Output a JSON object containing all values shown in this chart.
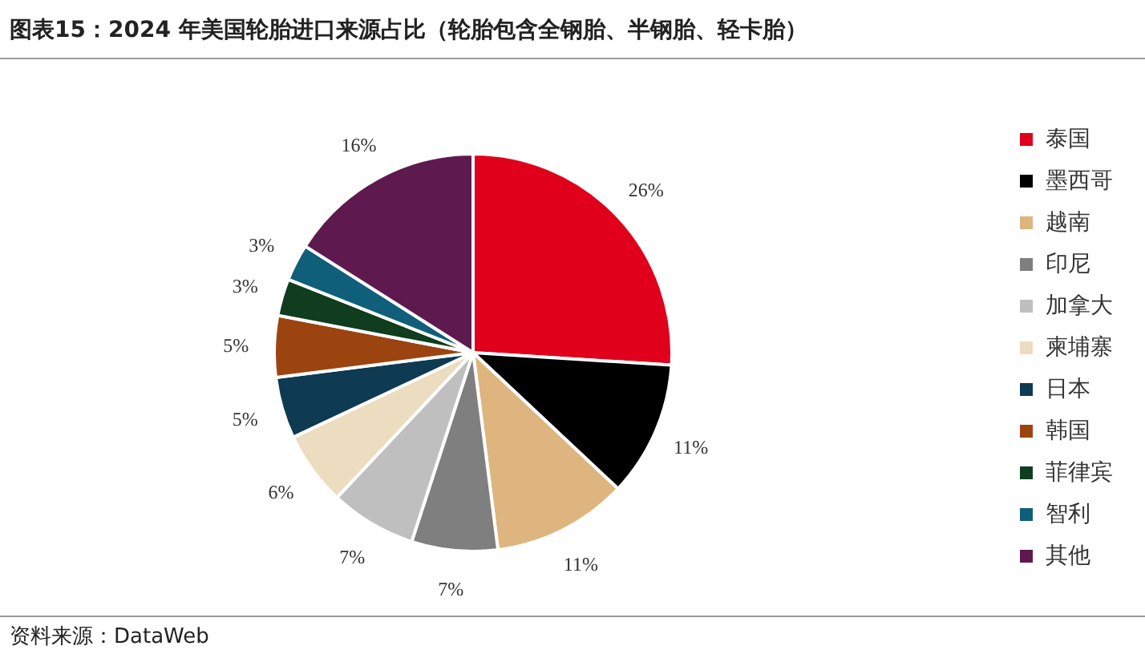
{
  "chart_data": {
    "type": "pie",
    "title": "图表15：2024 年美国轮胎进口来源占比（轮胎包含全钢胎、半钢胎、轻卡胎）",
    "categories": [
      "泰国",
      "墨西哥",
      "越南",
      "印尼",
      "加拿大",
      "柬埔寨",
      "日本",
      "韩国",
      "菲律宾",
      "智利",
      "其他"
    ],
    "values": [
      26,
      11,
      11,
      7,
      7,
      6,
      5,
      5,
      3,
      3,
      16
    ],
    "value_labels": [
      "26%",
      "11%",
      "11%",
      "7%",
      "7%",
      "6%",
      "5%",
      "5%",
      "3%",
      "3%",
      "16%"
    ],
    "colors": [
      "#e0001b",
      "#000000",
      "#deb57f",
      "#7f7f7f",
      "#bfbfbf",
      "#ecdcc0",
      "#0e3a52",
      "#9c4410",
      "#0f3d1e",
      "#105f7a",
      "#5e1a4f"
    ],
    "legend": "right",
    "annotations": [
      "资料来源：DataWeb"
    ]
  }
}
